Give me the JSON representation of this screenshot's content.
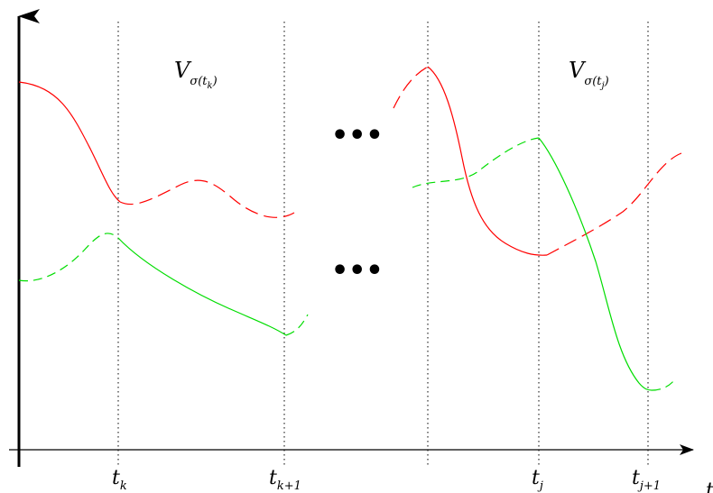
{
  "axes": {
    "x_axis_label": "t",
    "y_axis_label": ""
  },
  "ticks": [
    {
      "base": "t",
      "sub": "k"
    },
    {
      "base": "t",
      "sub": "k+1"
    },
    {
      "base": "t",
      "sub": "j"
    },
    {
      "base": "t",
      "sub": "j+1"
    }
  ],
  "regions": [
    {
      "base": "V",
      "sub_prefix": "σ(",
      "sub_var": "t",
      "sub_index": "k",
      "sub_suffix": ")"
    },
    {
      "base": "V",
      "sub_prefix": "σ(",
      "sub_var": "t",
      "sub_index": "j",
      "sub_suffix": ")"
    }
  ],
  "ellipsis": {
    "upper": "•••",
    "lower": "•••"
  },
  "colors": {
    "red_curve": "#ff0000",
    "green_curve": "#00dd00",
    "axis": "#000000",
    "guide": "#000000"
  },
  "style": {
    "guides": "dotted vertical lines",
    "active_segments": "solid",
    "inactive_segments": "dashed"
  }
}
